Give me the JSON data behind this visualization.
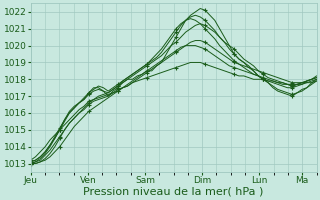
{
  "background_color": "#c8e8df",
  "plot_bg_color": "#c8e8df",
  "grid_color": "#a0c8c0",
  "line_color": "#1a5c1a",
  "marker_color": "#1a5c1a",
  "ylabel_ticks": [
    1013,
    1014,
    1015,
    1016,
    1017,
    1018,
    1019,
    1020,
    1021,
    1022
  ],
  "ylim": [
    1012.5,
    1022.5
  ],
  "xlabel": "Pression niveau de la mer( hPa )",
  "xlabel_fontsize": 8,
  "tick_fontsize": 6.5,
  "day_labels": [
    "Jeu",
    "Ven",
    "Sam",
    "Dim",
    "Lun",
    "Ma"
  ],
  "day_positions": [
    0,
    24,
    48,
    72,
    96,
    114
  ],
  "xlim": [
    0,
    120
  ],
  "n_minor_x": 6,
  "series": [
    [
      1013.0,
      1013.1,
      1013.3,
      1013.6,
      1014.0,
      1014.5,
      1015.0,
      1015.6,
      1016.1,
      1016.4,
      1016.6,
      1016.8,
      1017.2,
      1017.5,
      1017.5,
      1017.3,
      1017.0,
      1017.3,
      1017.5,
      1017.8,
      1018.0,
      1018.0,
      1018.2,
      1018.3,
      1018.5,
      1018.5,
      1018.8,
      1019.0,
      1019.5,
      1020.0,
      1020.5,
      1021.0,
      1021.5,
      1021.8,
      1022.0,
      1022.2,
      1022.1,
      1021.8,
      1021.5,
      1021.0,
      1020.5,
      1020.0,
      1019.5,
      1019.2,
      1019.0,
      1018.8,
      1018.5,
      1018.2,
      1018.0,
      1017.8,
      1017.5,
      1017.3,
      1017.2,
      1017.1,
      1017.0,
      1017.2,
      1017.3,
      1017.5,
      1017.8,
      1018.0
    ],
    [
      1013.0,
      1013.0,
      1013.1,
      1013.3,
      1013.6,
      1014.0,
      1014.5,
      1015.0,
      1015.4,
      1015.7,
      1016.0,
      1016.3,
      1016.6,
      1016.8,
      1017.0,
      1017.1,
      1017.2,
      1017.4,
      1017.6,
      1017.8,
      1018.0,
      1018.2,
      1018.4,
      1018.6,
      1018.8,
      1019.0,
      1019.2,
      1019.4,
      1019.7,
      1020.0,
      1020.2,
      1020.5,
      1020.8,
      1021.0,
      1021.2,
      1021.3,
      1021.2,
      1021.0,
      1020.8,
      1020.5,
      1020.2,
      1020.0,
      1019.8,
      1019.5,
      1019.2,
      1019.0,
      1018.8,
      1018.5,
      1018.3,
      1018.1,
      1018.0,
      1017.9,
      1017.8,
      1017.7,
      1017.6,
      1017.7,
      1017.8,
      1017.9,
      1018.0,
      1018.1
    ],
    [
      1013.1,
      1013.2,
      1013.4,
      1013.7,
      1014.1,
      1014.5,
      1015.0,
      1015.5,
      1016.0,
      1016.3,
      1016.6,
      1016.9,
      1017.2,
      1017.4,
      1017.6,
      1017.5,
      1017.3,
      1017.5,
      1017.7,
      1017.9,
      1018.1,
      1018.3,
      1018.5,
      1018.7,
      1018.9,
      1019.1,
      1019.3,
      1019.6,
      1020.0,
      1020.4,
      1020.8,
      1021.2,
      1021.5,
      1021.7,
      1021.8,
      1021.7,
      1021.5,
      1021.2,
      1020.9,
      1020.5,
      1020.2,
      1019.8,
      1019.5,
      1019.2,
      1019.0,
      1018.7,
      1018.5,
      1018.2,
      1018.0,
      1017.8,
      1017.6,
      1017.4,
      1017.3,
      1017.2,
      1017.1,
      1017.2,
      1017.4,
      1017.5,
      1017.7,
      1017.9
    ],
    [
      1013.2,
      1013.4,
      1013.7,
      1014.0,
      1014.4,
      1014.7,
      1015.0,
      1015.3,
      1015.6,
      1015.9,
      1016.2,
      1016.4,
      1016.7,
      1016.8,
      1016.9,
      1017.0,
      1017.1,
      1017.2,
      1017.4,
      1017.5,
      1017.6,
      1017.8,
      1018.0,
      1018.2,
      1018.4,
      1018.6,
      1018.8,
      1019.0,
      1019.2,
      1019.4,
      1019.6,
      1019.8,
      1020.0,
      1020.2,
      1020.3,
      1020.3,
      1020.2,
      1020.0,
      1019.8,
      1019.6,
      1019.4,
      1019.2,
      1019.0,
      1018.9,
      1018.8,
      1018.7,
      1018.6,
      1018.5,
      1018.4,
      1018.3,
      1018.2,
      1018.1,
      1018.0,
      1017.9,
      1017.8,
      1017.8,
      1017.8,
      1017.9,
      1018.0,
      1018.1
    ],
    [
      1013.0,
      1013.0,
      1013.1,
      1013.2,
      1013.4,
      1013.7,
      1014.0,
      1014.4,
      1014.8,
      1015.2,
      1015.5,
      1015.8,
      1016.1,
      1016.3,
      1016.5,
      1016.7,
      1016.9,
      1017.1,
      1017.3,
      1017.5,
      1017.7,
      1017.9,
      1018.1,
      1018.3,
      1018.5,
      1018.7,
      1018.9,
      1019.1,
      1019.3,
      1019.5,
      1019.7,
      1019.9,
      1020.0,
      1020.0,
      1020.0,
      1019.9,
      1019.8,
      1019.6,
      1019.4,
      1019.2,
      1019.0,
      1018.8,
      1018.7,
      1018.6,
      1018.5,
      1018.4,
      1018.3,
      1018.2,
      1018.1,
      1018.0,
      1017.9,
      1017.8,
      1017.7,
      1017.7,
      1017.6,
      1017.7,
      1017.7,
      1017.8,
      1017.8,
      1017.9
    ],
    [
      1013.0,
      1013.1,
      1013.2,
      1013.5,
      1013.8,
      1014.2,
      1014.6,
      1015.0,
      1015.4,
      1015.7,
      1016.0,
      1016.2,
      1016.5,
      1016.7,
      1016.8,
      1016.9,
      1017.0,
      1017.2,
      1017.3,
      1017.5,
      1017.6,
      1017.8,
      1017.9,
      1018.0,
      1018.1,
      1018.2,
      1018.3,
      1018.4,
      1018.5,
      1018.6,
      1018.7,
      1018.8,
      1018.9,
      1019.0,
      1019.0,
      1019.0,
      1018.9,
      1018.8,
      1018.7,
      1018.6,
      1018.5,
      1018.4,
      1018.3,
      1018.2,
      1018.2,
      1018.1,
      1018.0,
      1018.0,
      1018.0,
      1017.9,
      1017.9,
      1017.8,
      1017.8,
      1017.7,
      1017.7,
      1017.7,
      1017.8,
      1017.8,
      1017.9,
      1018.0
    ],
    [
      1013.1,
      1013.2,
      1013.4,
      1013.7,
      1014.1,
      1014.6,
      1015.1,
      1015.6,
      1016.0,
      1016.3,
      1016.6,
      1016.8,
      1017.1,
      1017.3,
      1017.4,
      1017.3,
      1017.2,
      1017.4,
      1017.6,
      1017.9,
      1018.1,
      1018.3,
      1018.5,
      1018.7,
      1018.9,
      1019.2,
      1019.5,
      1019.8,
      1020.2,
      1020.6,
      1021.0,
      1021.3,
      1021.5,
      1021.6,
      1021.5,
      1021.3,
      1021.0,
      1020.7,
      1020.4,
      1020.0,
      1019.7,
      1019.4,
      1019.1,
      1018.9,
      1018.7,
      1018.5,
      1018.3,
      1018.2,
      1018.0,
      1017.9,
      1017.8,
      1017.7,
      1017.6,
      1017.5,
      1017.5,
      1017.6,
      1017.7,
      1017.9,
      1018.0,
      1018.2
    ]
  ],
  "marker_every": 6
}
